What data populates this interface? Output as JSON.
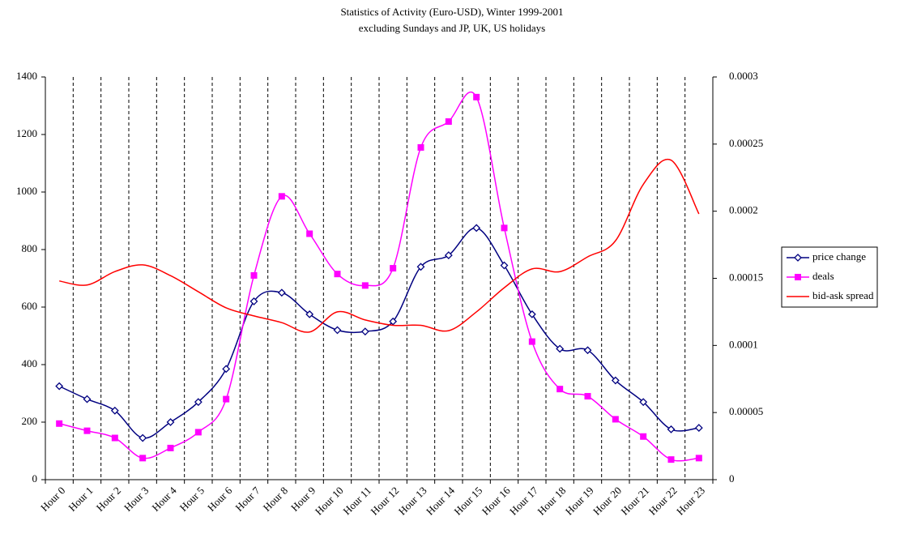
{
  "chart_data": {
    "type": "line",
    "title": "Statistics of Activity (Euro-USD), Winter 1999-2001",
    "subtitle": "excluding Sundays and JP, UK, US holidays",
    "categories": [
      "Hour 0",
      "Hour 1",
      "Hour 2",
      "Hour 3",
      "Hour 4",
      "Hour 5",
      "Hour 6",
      "Hour 7",
      "Hour 8",
      "Hour 9",
      "Hour 10",
      "Hour 11",
      "Hour 12",
      "Hour 13",
      "Hour 14",
      "Hour 15",
      "Hour 16",
      "Hour 17",
      "Hour 18",
      "Hour 19",
      "Hour 20",
      "Hour 21",
      "Hour 22",
      "Hour 23"
    ],
    "series": [
      {
        "name": "price change",
        "color": "#000080",
        "marker": "diamond",
        "values": [
          325,
          280,
          240,
          145,
          200,
          270,
          385,
          620,
          650,
          575,
          520,
          515,
          550,
          740,
          780,
          875,
          745,
          575,
          455,
          450,
          345,
          270,
          175,
          180
        ]
      },
      {
        "name": "deals",
        "color": "#ff00ff",
        "marker": "square",
        "values": [
          195,
          170,
          145,
          75,
          110,
          165,
          280,
          710,
          985,
          855,
          715,
          675,
          735,
          1155,
          1245,
          1330,
          875,
          480,
          315,
          290,
          210,
          150,
          70,
          75
        ]
      },
      {
        "name": "bid-ask spread",
        "color": "#ff0000",
        "marker": "none",
        "axis": "y2",
        "values": [
          0.000148,
          0.000145,
          0.000155,
          0.00016,
          0.000152,
          0.00014,
          0.000128,
          0.000122,
          0.000117,
          0.00011,
          0.000125,
          0.000119,
          0.000115,
          0.000115,
          0.000111,
          0.000125,
          0.000143,
          0.000157,
          0.000155,
          0.000166,
          0.000178,
          0.00022,
          0.000238,
          0.000198
        ]
      }
    ],
    "ylim": [
      0,
      1400
    ],
    "yticks": [
      0,
      200,
      400,
      600,
      800,
      1000,
      1200,
      1400
    ],
    "y2lim": [
      0,
      0.0003
    ],
    "y2ticks": [
      0,
      5e-05,
      0.0001,
      0.00015,
      0.0002,
      0.00025,
      0.0003
    ],
    "smooth": true,
    "grid": "vertical-dashed",
    "legend": "right"
  }
}
